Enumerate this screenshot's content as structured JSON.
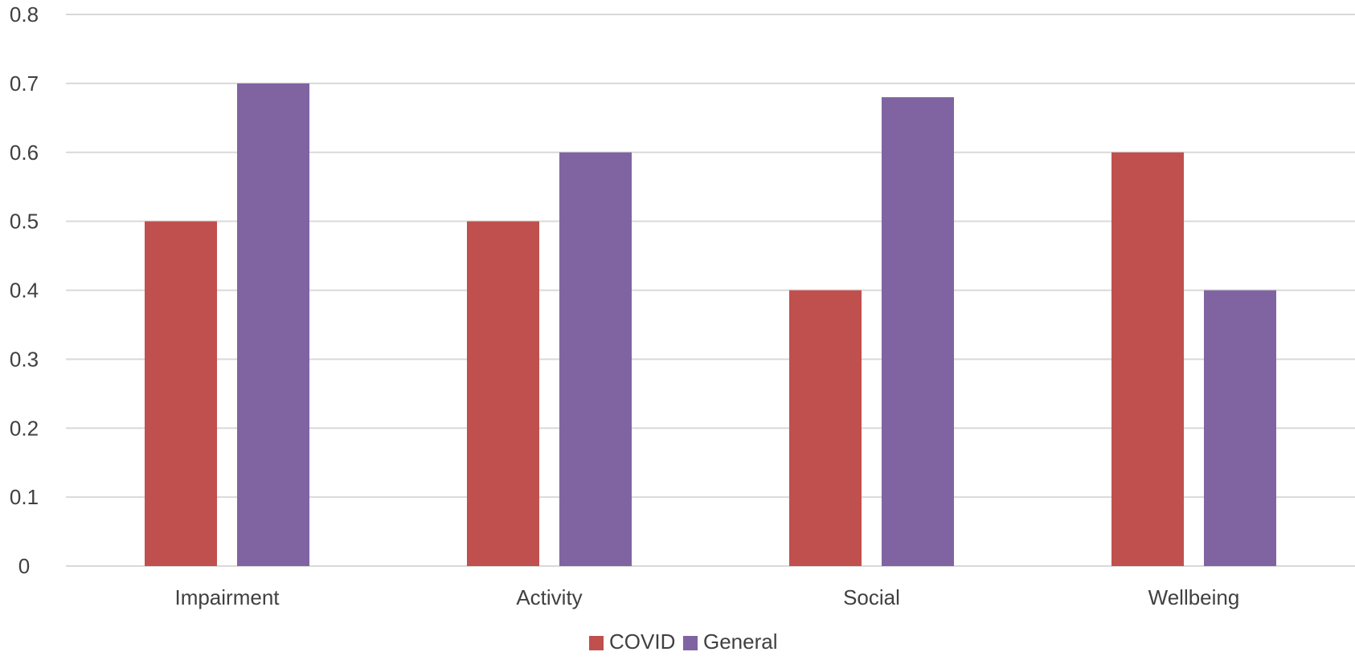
{
  "chart_data": {
    "type": "bar",
    "categories": [
      "Impairment",
      "Activity",
      "Social",
      "Wellbeing"
    ],
    "series": [
      {
        "name": "COVID",
        "color": "#c0504d",
        "values": [
          0.5,
          0.5,
          0.4,
          0.6
        ]
      },
      {
        "name": "General",
        "color": "#8064a2",
        "values": [
          0.7,
          0.6,
          0.68,
          0.4
        ]
      }
    ],
    "y_ticks": [
      "0",
      "0.1",
      "0.2",
      "0.3",
      "0.4",
      "0.5",
      "0.6",
      "0.7",
      "0.8"
    ],
    "ylim": [
      0,
      0.8
    ],
    "grid": true,
    "legend_position": "bottom"
  }
}
